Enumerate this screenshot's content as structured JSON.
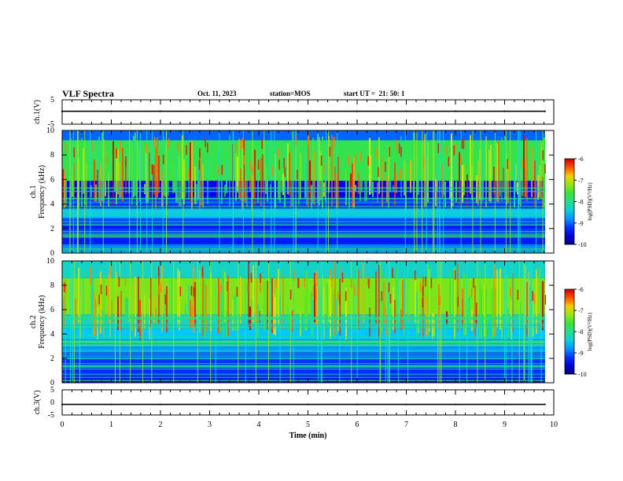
{
  "header": {
    "title": "VLF Spectra",
    "date": "Oct. 11, 2023",
    "station_label": "station=",
    "station": "MOS",
    "start_label": "start UT =",
    "start_time": "21: 50: 1"
  },
  "chart_data": [
    {
      "type": "line",
      "id": "ch1-voltage",
      "ylabel": "ch.1(V)",
      "ylim": [
        -5,
        5
      ],
      "y_ticks": [
        "5",
        "-5"
      ],
      "x": [
        0,
        1,
        2,
        3,
        4,
        5,
        6,
        7,
        8,
        9,
        9.82
      ],
      "values": [
        0.3,
        0.3,
        0.3,
        0.3,
        0.3,
        0.3,
        0.3,
        0.3,
        0.3,
        0.3,
        0.3
      ],
      "color": "#000000"
    },
    {
      "type": "heatmap",
      "id": "ch1-spectrogram",
      "ylabel": "ch.1\nFrequency (kHz)",
      "ylabel_lines": [
        "ch.1",
        "Frequency (kHz)"
      ],
      "ylim": [
        0,
        10
      ],
      "y_ticks": [
        "0",
        "2",
        "4",
        "6",
        "8",
        "10"
      ],
      "xlim": [
        0,
        10
      ],
      "data_end_min": 9.82,
      "colorbar": {
        "label": "log(PSD)(V²/Hz)",
        "range": [
          -10,
          -6
        ],
        "ticks": [
          "-6",
          "-7",
          "-8",
          "-9",
          "-10"
        ]
      },
      "bands_khz": [
        {
          "from": 0,
          "to": 0.6,
          "level": -8.8
        },
        {
          "from": 0.6,
          "to": 2.4,
          "level": -9.3
        },
        {
          "from": 2.4,
          "to": 2.9,
          "level": -9.1
        },
        {
          "from": 2.9,
          "to": 3.6,
          "level": -8.5
        },
        {
          "from": 3.6,
          "to": 4.6,
          "level": -9.2
        },
        {
          "from": 4.6,
          "to": 5.9,
          "level": -9.4
        },
        {
          "from": 5.9,
          "to": 9.2,
          "level": -7.7
        },
        {
          "from": 9.2,
          "to": 10,
          "level": -9.0
        }
      ]
    },
    {
      "type": "heatmap",
      "id": "ch2-spectrogram",
      "ylabel": "ch.2\nFrequency (kHz)",
      "ylabel_lines": [
        "ch.2",
        "Frequency (kHz)"
      ],
      "ylim": [
        0,
        10
      ],
      "y_ticks": [
        "0",
        "2",
        "4",
        "6",
        "8",
        "10"
      ],
      "xlim": [
        0,
        10
      ],
      "data_end_min": 9.82,
      "colorbar": {
        "label": "log(PSD)(V²/Hz)",
        "range": [
          -10,
          -6
        ],
        "ticks": [
          "-6",
          "-7",
          "-8",
          "-9",
          "-10"
        ]
      },
      "bands_khz": [
        {
          "from": 0,
          "to": 0.5,
          "level": -9.6
        },
        {
          "from": 0.5,
          "to": 2.6,
          "level": -9.2
        },
        {
          "from": 2.6,
          "to": 3.0,
          "level": -8.8
        },
        {
          "from": 3.0,
          "to": 3.5,
          "level": -8.0
        },
        {
          "from": 3.5,
          "to": 4.4,
          "level": -8.6
        },
        {
          "from": 4.4,
          "to": 5.6,
          "level": -8.3
        },
        {
          "from": 5.6,
          "to": 8.6,
          "level": -7.3
        },
        {
          "from": 8.6,
          "to": 10,
          "level": -8.3
        }
      ]
    },
    {
      "type": "line",
      "id": "ch3-voltage",
      "ylabel": "ch.3(V)",
      "ylim": [
        -5,
        5
      ],
      "y_ticks": [
        "5",
        "0",
        "-5"
      ],
      "x": [
        0,
        1,
        2,
        3,
        4,
        5,
        6,
        7,
        8,
        9,
        9.82
      ],
      "values": [
        -0.8,
        -0.8,
        -0.8,
        -0.8,
        -0.8,
        -0.8,
        -0.8,
        -0.8,
        -0.8,
        -0.8,
        -0.8
      ],
      "color": "#000000"
    }
  ],
  "x_axis": {
    "label": "Time (min)",
    "range": [
      0,
      10
    ],
    "ticks": [
      "0",
      "1",
      "2",
      "3",
      "4",
      "5",
      "6",
      "7",
      "8",
      "9",
      "10"
    ]
  }
}
